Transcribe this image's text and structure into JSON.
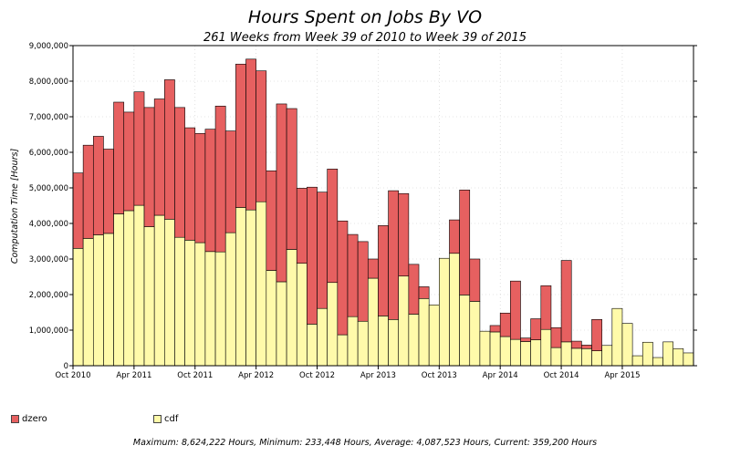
{
  "chart_data": {
    "type": "bar",
    "stacked": true,
    "title": "Hours Spent on Jobs By VO",
    "subtitle": "261 Weeks from Week 39 of 2010 to Week 39 of 2015",
    "ylabel": "Computation Time [Hours]",
    "xlabel": "",
    "ylim": [
      0,
      9000000
    ],
    "yticks": [
      "0",
      "1,000,000",
      "2,000,000",
      "3,000,000",
      "4,000,000",
      "5,000,000",
      "6,000,000",
      "7,000,000",
      "8,000,000",
      "9,000,000"
    ],
    "xticks": [
      {
        "label": "Oct 2010",
        "index": 0
      },
      {
        "label": "Apr 2011",
        "index": 6
      },
      {
        "label": "Oct 2011",
        "index": 12
      },
      {
        "label": "Apr 2012",
        "index": 18
      },
      {
        "label": "Oct 2012",
        "index": 24
      },
      {
        "label": "Apr 2013",
        "index": 30
      },
      {
        "label": "Oct 2013",
        "index": 36
      },
      {
        "label": "Apr 2014",
        "index": 42
      },
      {
        "label": "Oct 2014",
        "index": 48
      },
      {
        "label": "Apr 2015",
        "index": 54
      }
    ],
    "legend_position": "bottom",
    "series": [
      {
        "name": "cdf",
        "color": "#fffaaa",
        "values": [
          3300000,
          3580000,
          3680000,
          3720000,
          4270000,
          4360000,
          4510000,
          3910000,
          4230000,
          4120000,
          3610000,
          3530000,
          3460000,
          3210000,
          3200000,
          3740000,
          4450000,
          4380000,
          4610000,
          2680000,
          2360000,
          3270000,
          2880000,
          1170000,
          1610000,
          2340000,
          870000,
          1380000,
          1250000,
          2460000,
          1400000,
          1300000,
          2520000,
          1450000,
          1890000,
          1710000,
          3020000,
          3160000,
          1990000,
          1810000,
          970000,
          950000,
          820000,
          740000,
          680000,
          730000,
          1020000,
          510000,
          670000,
          490000,
          480000,
          420000,
          570000,
          1610000,
          1190000,
          280000,
          660000,
          230000,
          670000,
          480000,
          360000
        ]
      },
      {
        "name": "dzero",
        "color": "#e66060",
        "values": [
          2120000,
          2620000,
          2770000,
          2370000,
          3140000,
          2770000,
          3190000,
          3350000,
          3270000,
          3920000,
          3650000,
          3160000,
          3070000,
          3440000,
          4100000,
          2860000,
          4030000,
          4240000,
          3680000,
          2800000,
          5000000,
          3960000,
          2110000,
          3850000,
          3270000,
          3190000,
          3200000,
          2310000,
          2240000,
          540000,
          2540000,
          3620000,
          2320000,
          1400000,
          330000,
          0,
          0,
          940000,
          2950000,
          1190000,
          0,
          180000,
          660000,
          1640000,
          100000,
          590000,
          1230000,
          560000,
          2290000,
          200000,
          100000,
          880000,
          0,
          0,
          0,
          0,
          0,
          0,
          0,
          0,
          0
        ]
      }
    ],
    "summary": "Maximum: 8,624,222 Hours, Minimum: 233,448 Hours, Average: 4,087,523 Hours, Current: 359,200 Hours"
  }
}
